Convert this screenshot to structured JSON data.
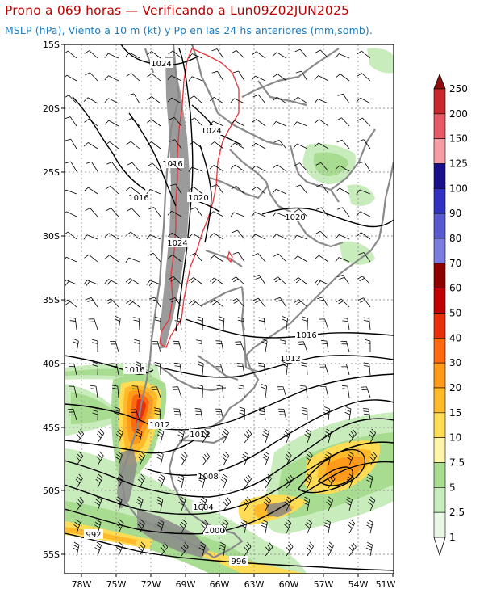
{
  "header": {
    "title": "Prono a 069 horas — Verificando a Lun09Z02JUN2025",
    "subtitle": "MSLP (hPa), Viento a 10 m (kt) y Pp en las 24 hs anteriores (mm,somb)."
  },
  "colors": {
    "title": "#c00000",
    "subtitle": "#1e7dc2",
    "isobar": "#000000",
    "borders": "#8a8a8a",
    "andes_contour": "#e8333a"
  },
  "axes": {
    "lat_labels": [
      "15S",
      "20S",
      "25S",
      "30S",
      "35S",
      "40S",
      "45S",
      "50S",
      "55S"
    ],
    "lon_labels": [
      "78W",
      "75W",
      "72W",
      "69W",
      "66W",
      "63W",
      "60W",
      "57W",
      "54W",
      "51W"
    ]
  },
  "isobars": {
    "labels": [
      "1024",
      "1024",
      "1016",
      "1016",
      "1020",
      "1024",
      "1020",
      "1016",
      "1012",
      "1016",
      "1012",
      "1012",
      "1008",
      "1004",
      "1000",
      "996",
      "992"
    ]
  },
  "legend": {
    "title": "",
    "levels": [
      "250",
      "200",
      "150",
      "125",
      "100",
      "90",
      "80",
      "70",
      "60",
      "50",
      "40",
      "30",
      "20",
      "15",
      "10",
      "7.5",
      "5",
      "2.5",
      "1"
    ],
    "colors": [
      "#c8282e",
      "#e65a65",
      "#f59ca5",
      "#1a0f8a",
      "#3232c0",
      "#5a5ad0",
      "#7b7be0",
      "#8e0000",
      "#c00000",
      "#e8300c",
      "#ff6a10",
      "#ff9a1a",
      "#ffba2a",
      "#ffdc55",
      "#fff5aa",
      "#a8dc90",
      "#c8ecbc",
      "#e8f8e4"
    ]
  }
}
